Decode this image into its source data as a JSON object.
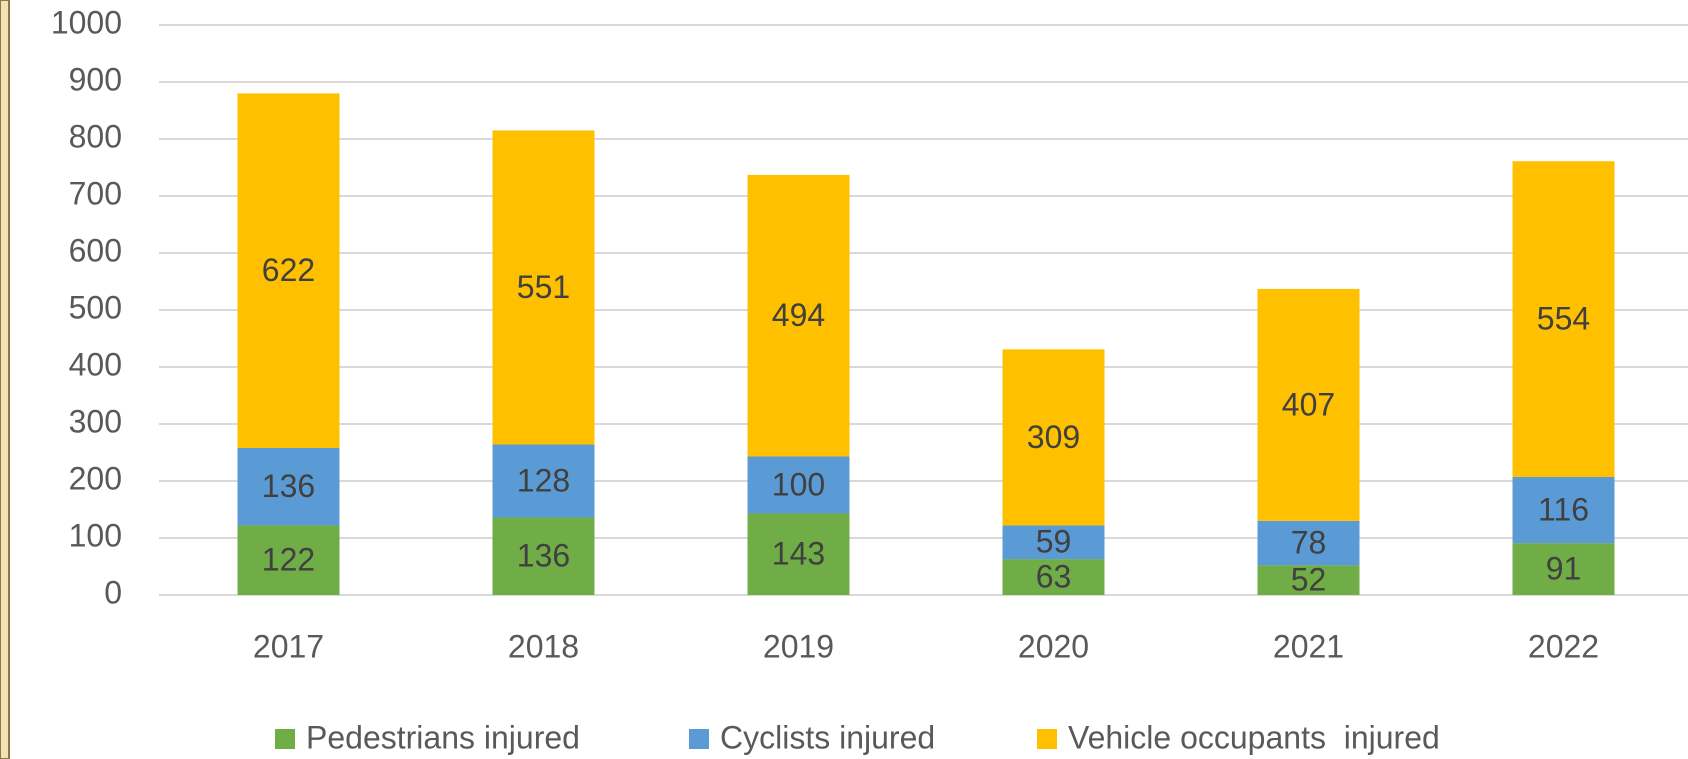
{
  "chart_data": {
    "type": "stacked_bar",
    "categories": [
      "2017",
      "2018",
      "2019",
      "2020",
      "2021",
      "2022"
    ],
    "series": [
      {
        "name": "Pedestrians injured",
        "color": "#70ad47",
        "values": [
          122,
          136,
          143,
          63,
          52,
          91
        ]
      },
      {
        "name": "Cyclists injured",
        "color": "#5b9bd5",
        "values": [
          136,
          128,
          100,
          59,
          78,
          116
        ]
      },
      {
        "name": "Vehicle occupants  injured",
        "color": "#ffc000",
        "values": [
          622,
          551,
          494,
          309,
          407,
          554
        ]
      }
    ],
    "ylim": [
      0,
      1000
    ],
    "yticks": [
      0,
      100,
      200,
      300,
      400,
      500,
      600,
      700,
      800,
      900,
      1000
    ],
    "grid": true,
    "legend": "bottom"
  }
}
